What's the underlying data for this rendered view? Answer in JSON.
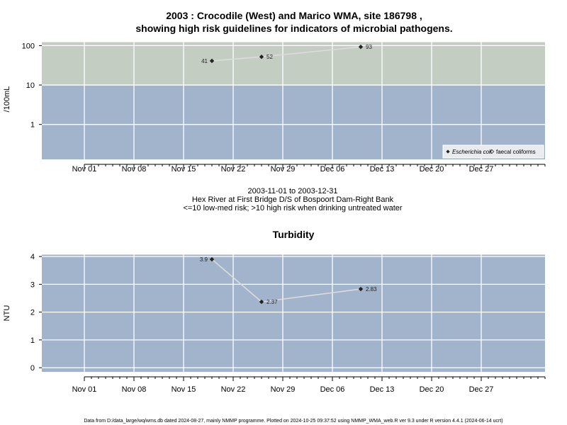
{
  "main_title": {
    "line1": "2003 : Crocodile (West) and Marico WMA, site 186798 ,",
    "line2": "showing high risk guidelines for indicators of microbial pathogens."
  },
  "subtitle": {
    "line1": "2003-11-01 to 2003-12-31",
    "line2": "Hex River at First Bridge D/S of Bospoort Dam-Right Bank",
    "line3": "<=10 low-med risk; >10 high risk when drinking untreated water"
  },
  "footer": "Data from D:/data_large/wq/wms.db dated 2024-08-27, mainly NMMP programme. Plotted on 2024-10-25 09:37:52 using NMMP_WMA_web.R ver 9.3 under R version 4.4.1 (2024-06-14 ucrt)",
  "colors": {
    "panel_low": "#a2b3cc",
    "panel_high": "#c4cdc2",
    "grid": "#ffffff",
    "line": "#dcdcdc",
    "point": "#222222"
  },
  "chart_data": [
    {
      "type": "line",
      "title": "",
      "ylabel": "/100mL",
      "yscale": "log",
      "ylim": [
        0.13,
        125
      ],
      "yticks": [
        1,
        10,
        100
      ],
      "ytick_labels": [
        "1",
        "10",
        "100"
      ],
      "xlim": [
        "2003-10-26",
        "2004-01-05"
      ],
      "xticks": [
        "2003-11-01",
        "2003-11-08",
        "2003-11-15",
        "2003-11-22",
        "2003-11-29",
        "2003-12-06",
        "2003-12-13",
        "2003-12-20",
        "2003-12-27"
      ],
      "xtick_labels": [
        "Nov 01",
        "Nov 08",
        "Nov 15",
        "Nov 22",
        "Nov 29",
        "Dec 06",
        "Dec 13",
        "Dec 20",
        "Dec 27"
      ],
      "threshold": 10,
      "grid": true,
      "legend_position": "bottom-right",
      "series": [
        {
          "name": "Escherichia coli",
          "marker": "filled-diamond",
          "x": [
            "2003-11-19",
            "2003-11-26",
            "2003-12-10"
          ],
          "y": [
            41,
            52,
            93
          ],
          "labels": [
            "41",
            "52",
            "93"
          ]
        },
        {
          "name": "faecal coliforms",
          "marker": "open-diamond",
          "x": [],
          "y": [],
          "labels": []
        }
      ]
    },
    {
      "type": "line",
      "title": "Turbidity",
      "ylabel": "NTU",
      "ylim": [
        -0.15,
        4.08
      ],
      "yticks": [
        0,
        1,
        2,
        3,
        4
      ],
      "ytick_labels": [
        "0",
        "1",
        "2",
        "3",
        "4"
      ],
      "xlim": [
        "2003-10-26",
        "2004-01-05"
      ],
      "xticks": [
        "2003-11-01",
        "2003-11-08",
        "2003-11-15",
        "2003-11-22",
        "2003-11-29",
        "2003-12-06",
        "2003-12-13",
        "2003-12-20",
        "2003-12-27"
      ],
      "xtick_labels": [
        "Nov 01",
        "Nov 08",
        "Nov 15",
        "Nov 22",
        "Nov 29",
        "Dec 06",
        "Dec 13",
        "Dec 20",
        "Dec 27"
      ],
      "grid": true,
      "series": [
        {
          "name": "",
          "marker": "filled-diamond",
          "x": [
            "2003-11-19",
            "2003-11-26",
            "2003-12-10"
          ],
          "y": [
            3.9,
            2.37,
            2.83
          ],
          "labels": [
            "3.9",
            "2.37",
            "2.83"
          ]
        }
      ]
    }
  ]
}
